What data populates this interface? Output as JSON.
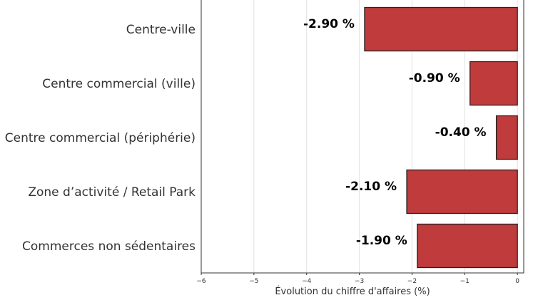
{
  "chart_data": {
    "type": "bar",
    "orientation": "horizontal",
    "categories": [
      "Centre-ville",
      "Centre commercial (ville)",
      "Centre commercial (périphérie)",
      "Zone d’activité / Retail Park",
      "Commerces non sédentaires"
    ],
    "values": [
      -2.9,
      -0.9,
      -0.4,
      -2.1,
      -1.9
    ],
    "data_labels": [
      "-2.90 %",
      "-0.90 %",
      "-0.40 %",
      "-2.10 %",
      "-1.90 %"
    ],
    "xlabel": "Évolution du chiffre d'affaires (%)",
    "ylabel": "",
    "xlim": [
      -6,
      0.12
    ],
    "xticks": [
      -6,
      -5,
      -4,
      -3,
      -2,
      -1,
      0
    ],
    "xtick_labels": [
      "−6",
      "−5",
      "−4",
      "−3",
      "−2",
      "−1",
      "0"
    ],
    "grid": "vertical",
    "colors": {
      "bar": "#c03b3b",
      "edge": "#222222",
      "grid": "#e2e2e2",
      "frame": "#333333"
    }
  }
}
